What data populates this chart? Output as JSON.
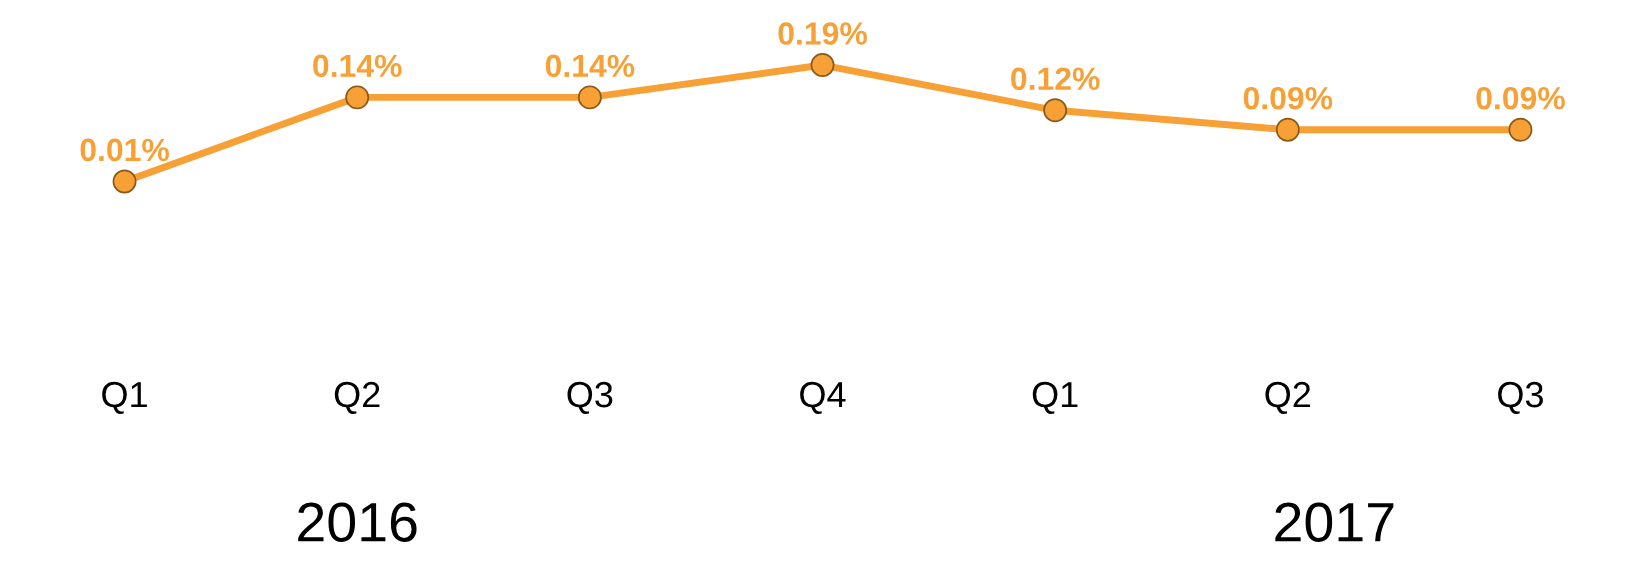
{
  "chart_data": {
    "type": "line",
    "categories": [
      "Q1",
      "Q2",
      "Q3",
      "Q4",
      "Q1",
      "Q2",
      "Q3"
    ],
    "series": [
      {
        "color": "#f7a035",
        "values": [
          0.01,
          0.14,
          0.14,
          0.19,
          0.12,
          0.09,
          0.09
        ],
        "value_labels": [
          "0.01%",
          "0.14%",
          "0.14%",
          "0.19%",
          "0.12%",
          "0.09%",
          "0.09%"
        ]
      }
    ],
    "annotations": [
      "2016",
      "2017"
    ],
    "marker": "circle",
    "line_style": "solid",
    "grid": false,
    "legend": false
  }
}
